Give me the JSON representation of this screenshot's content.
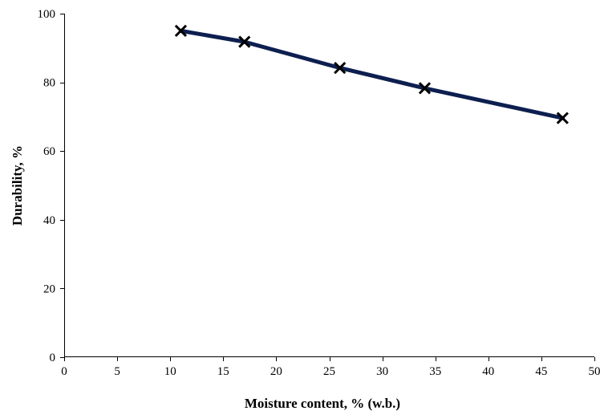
{
  "chart_data": {
    "type": "line",
    "title": "",
    "xlabel": "Moisture content, % (w.b.)",
    "ylabel": "Durability, %",
    "xlim": [
      0,
      50
    ],
    "ylim": [
      0,
      100
    ],
    "x_ticks": [
      0,
      5,
      10,
      15,
      20,
      25,
      30,
      35,
      40,
      45,
      50
    ],
    "y_ticks": [
      0,
      20,
      40,
      60,
      80,
      100
    ],
    "grid": false,
    "legend": "none",
    "series": [
      {
        "x": [
          11,
          17,
          26,
          34,
          47
        ],
        "y": [
          95,
          91.8,
          84.2,
          78.3,
          69.6
        ],
        "line_color": "#0d1f4f",
        "marker": "x",
        "marker_color": "#000000"
      }
    ]
  }
}
